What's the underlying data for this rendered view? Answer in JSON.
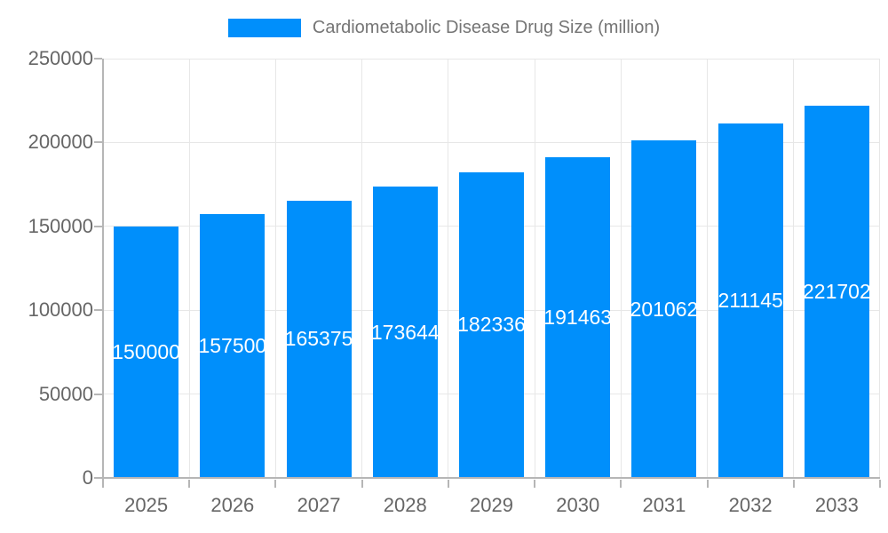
{
  "legend": {
    "label": "Cardiometabolic Disease Drug Size (million)",
    "swatch_color": "#008FFB"
  },
  "chart_data": {
    "type": "bar",
    "title": "Cardiometabolic Disease Drug Size (million)",
    "categories": [
      "2025",
      "2026",
      "2027",
      "2028",
      "2029",
      "2030",
      "2031",
      "2032",
      "2033"
    ],
    "values": [
      150000,
      157500,
      165375,
      173644,
      182336,
      191463,
      201062,
      211145,
      221702
    ],
    "bar_labels": [
      "150000",
      "157500",
      "165375",
      "173644",
      "182336",
      "191463",
      "201062",
      "211145",
      "221702"
    ],
    "xlabel": "",
    "ylabel": "",
    "ylim": [
      0,
      250000
    ],
    "yticks": [
      0,
      50000,
      100000,
      150000,
      200000,
      250000
    ],
    "grid": true,
    "legend_position": "top",
    "colors": {
      "bar": "#008FFB",
      "bar_label_text": "#ffffff",
      "gridline": "#e7e7e7",
      "axis_line": "#b6b6b6",
      "axis_text": "#666666",
      "legend_text": "#757575"
    }
  }
}
